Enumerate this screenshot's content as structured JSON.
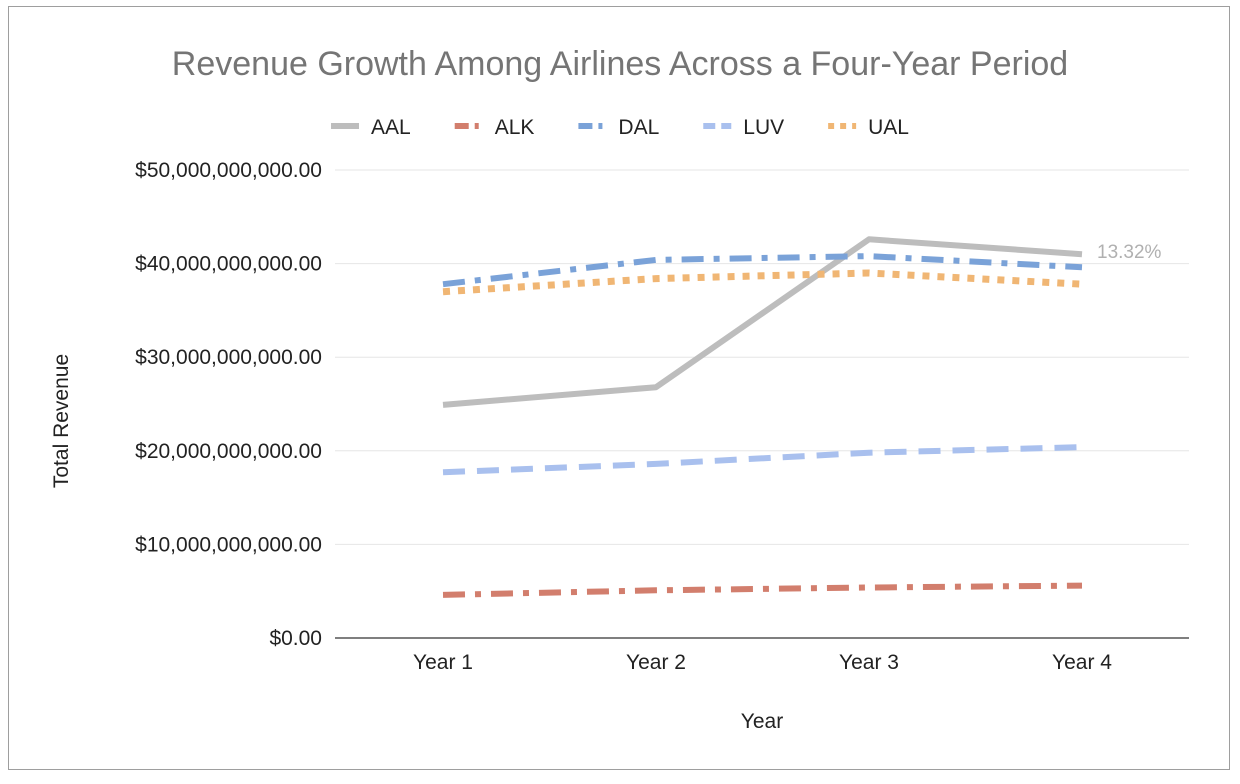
{
  "chart_data": {
    "type": "line",
    "title": "Revenue Growth Among Airlines Across a Four-Year Period",
    "xlabel": "Year",
    "ylabel": "Total Revenue",
    "categories": [
      "Year 1",
      "Year 2",
      "Year 3",
      "Year 4"
    ],
    "ylim": [
      0,
      50000000000
    ],
    "y_ticks": [
      0,
      10000000000,
      20000000000,
      30000000000,
      40000000000,
      50000000000
    ],
    "y_tick_labels": [
      "$0.00",
      "$10,000,000,000.00",
      "$20,000,000,000.00",
      "$30,000,000,000.00",
      "$40,000,000,000.00",
      "$50,000,000,000.00"
    ],
    "grid": true,
    "legend_position": "top",
    "series": [
      {
        "name": "AAL",
        "color": "#bdbdbd",
        "style": "solid",
        "values": [
          24900000000,
          26800000000,
          42600000000,
          41000000000
        ]
      },
      {
        "name": "ALK",
        "color": "#d27e6d",
        "style": "dash-dot",
        "values": [
          4600000000,
          5100000000,
          5400000000,
          5600000000
        ]
      },
      {
        "name": "DAL",
        "color": "#7aa2d8",
        "style": "dash-dot",
        "values": [
          37800000000,
          40400000000,
          40800000000,
          39600000000
        ]
      },
      {
        "name": "LUV",
        "color": "#a9c0ee",
        "style": "dashed",
        "values": [
          17700000000,
          18600000000,
          19800000000,
          20400000000
        ]
      },
      {
        "name": "UAL",
        "color": "#f0b674",
        "style": "dotted",
        "values": [
          37000000000,
          38400000000,
          39000000000,
          37800000000
        ]
      }
    ],
    "annotations": [
      {
        "text": "13.32%",
        "series": "AAL",
        "category": "Year 4"
      }
    ]
  }
}
